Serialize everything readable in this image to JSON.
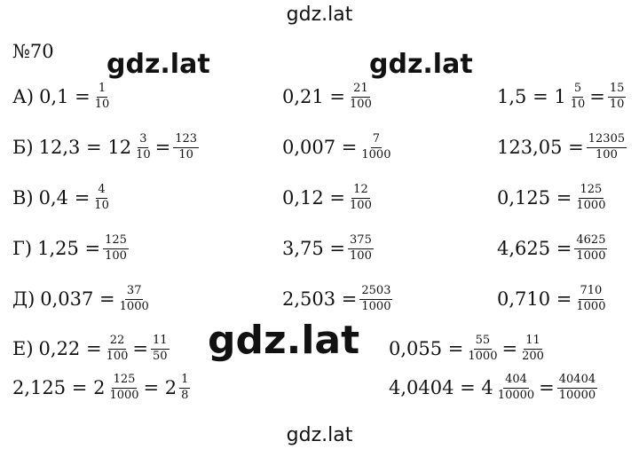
{
  "watermarks": {
    "top": "gdz.lat",
    "bottom": "gdz.lat",
    "bold_1": "gdz.lat",
    "bold_2": "gdz.lat",
    "bold_3": "gdz.lat"
  },
  "problem_number": "№70",
  "rows": {
    "a": {
      "label": "А)",
      "c1": {
        "lhs": "0,1 =",
        "f1n": "1",
        "f1d": "10"
      },
      "c2": {
        "lhs": "0,21 =",
        "f1n": "21",
        "f1d": "100"
      },
      "c3": {
        "lhs": "1,5 = 1",
        "f1n": "5",
        "f1d": "10",
        "eq2": "=",
        "f2n": "15",
        "f2d": "10"
      }
    },
    "b": {
      "label": "Б)",
      "c1": {
        "lhs": "12,3 = 12",
        "f1n": "3",
        "f1d": "10",
        "eq2": "=",
        "f2n": "123",
        "f2d": "10"
      },
      "c2": {
        "lhs": "0,007 =",
        "f1n": "7",
        "f1d": "1000"
      },
      "c3": {
        "lhs": "123,05 =",
        "f1n": "12305",
        "f1d": "100"
      }
    },
    "v": {
      "label": "В)",
      "c1": {
        "lhs": "0,4 =",
        "f1n": "4",
        "f1d": "10"
      },
      "c2": {
        "lhs": "0,12 =",
        "f1n": "12",
        "f1d": "100"
      },
      "c3": {
        "lhs": "0,125 =",
        "f1n": "125",
        "f1d": "1000"
      }
    },
    "g": {
      "label": "Г)",
      "c1": {
        "lhs": "1,25 =",
        "f1n": "125",
        "f1d": "100"
      },
      "c2": {
        "lhs": "3,75 =",
        "f1n": "375",
        "f1d": "100"
      },
      "c3": {
        "lhs": "4,625 =",
        "f1n": "4625",
        "f1d": "1000"
      }
    },
    "d": {
      "label": "Д)",
      "c1": {
        "lhs": "0,037 =",
        "f1n": "37",
        "f1d": "1000"
      },
      "c2": {
        "lhs": "2,503 =",
        "f1n": "2503",
        "f1d": "1000"
      },
      "c3": {
        "lhs": "0,710 =",
        "f1n": "710",
        "f1d": "1000"
      }
    },
    "e": {
      "label": "Е)",
      "c1": {
        "lhs": "0,22 =",
        "f1n": "22",
        "f1d": "100",
        "eq2": "=",
        "f2n": "11",
        "f2d": "50"
      },
      "c2": {
        "lhs": "0,055 =",
        "f1n": "55",
        "f1d": "1000",
        "eq2": "=",
        "f2n": "11",
        "f2d": "200"
      }
    },
    "e2": {
      "c1": {
        "lhs": "2,125 = 2",
        "f1n": "125",
        "f1d": "1000",
        "eq2": "= 2",
        "f2n": "1",
        "f2d": "8"
      },
      "c2": {
        "lhs": "4,0404 = 4",
        "f1n": "404",
        "f1d": "10000",
        "eq2": "=",
        "f2n": "40404",
        "f2d": "10000"
      }
    }
  }
}
